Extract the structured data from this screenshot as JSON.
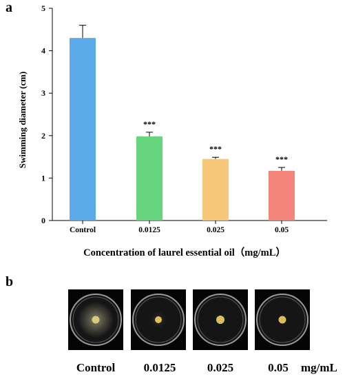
{
  "panels": {
    "a": "a",
    "b": "b"
  },
  "chart_data": {
    "type": "bar",
    "categories": [
      "Control",
      "0.0125",
      "0.025",
      "0.05"
    ],
    "values": [
      4.3,
      1.98,
      1.45,
      1.17
    ],
    "errors": [
      0.3,
      0.1,
      0.04,
      0.08
    ],
    "annotations": [
      "",
      "***",
      "***",
      "***"
    ],
    "colors": [
      "#5aabe8",
      "#67d47e",
      "#f7c87a",
      "#f4857a"
    ],
    "xlabel": "Concentration  of  laurel essential oil（mg/mL）",
    "ylabel": "Swimming diameter (cm)",
    "ylim": [
      0,
      5
    ],
    "yticks": [
      0,
      1,
      2,
      3,
      4,
      5
    ],
    "grid": false
  },
  "plates": {
    "labels": [
      "Control",
      "0.0125",
      "0.025",
      "0.05"
    ],
    "unit": "mg/mL"
  }
}
